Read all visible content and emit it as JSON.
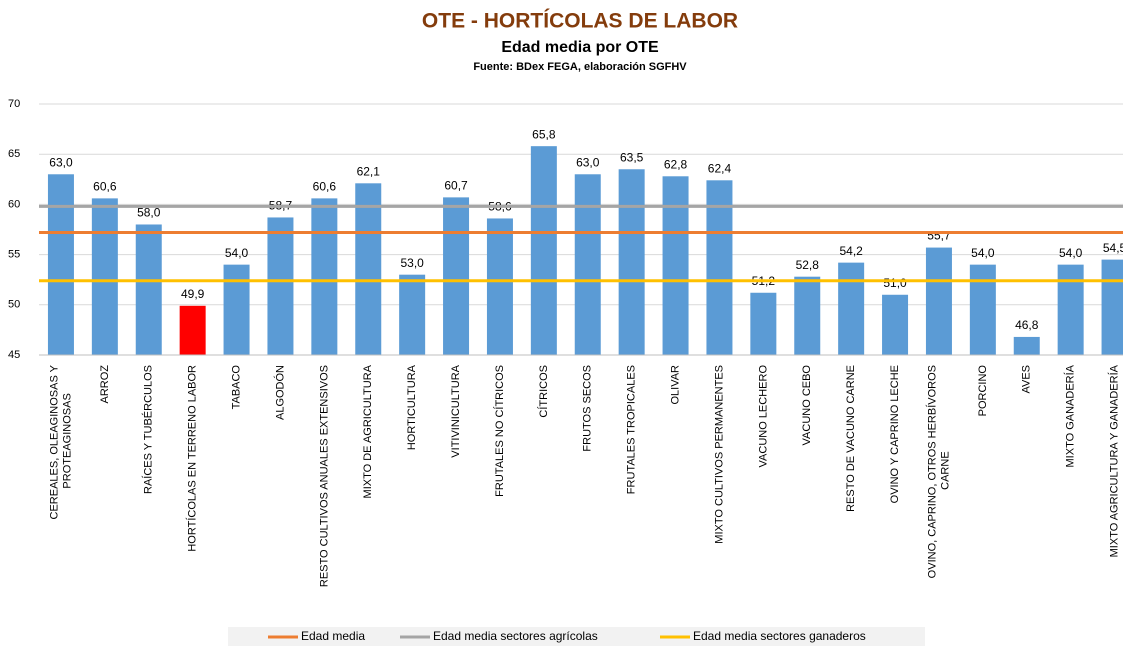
{
  "chart_data": {
    "type": "bar",
    "title": "OTE - HORTÍCOLAS DE LABOR",
    "subtitle": "Edad media por OTE",
    "source": "Fuente: BDex FEGA, elaboración SGFHV",
    "categories": [
      [
        "CEREALES, OLEAGINOSAS Y",
        "PROTEAGINOSAS"
      ],
      "ARROZ",
      "RAÍCES Y TUBÉRCULOS",
      "HORTÍCOLAS EN TERRENO LABOR",
      "TABACO",
      "ALGODÓN",
      "RESTO CULTIVOS ANUALES EXTENSIVOS",
      "MIXTO DE AGRICULTURA",
      "HORTICULTURA",
      "VITIVINICULTURA",
      "FRUTALES NO CÍTRICOS",
      "CÍTRICOS",
      "FRUTOS SECOS",
      "FRUTALES TROPICALES",
      "OLIVAR",
      "MIXTO CULTIVOS PERMANENTES",
      "VACUNO LECHERO",
      "VACUNO CEBO",
      "RESTO DE VACUNO CARNE",
      "OVINO Y CAPRINO LECHE",
      [
        "OVINO, CAPRINO, OTROS HERBÍVOROS",
        "CARNE"
      ],
      "PORCINO",
      "AVES",
      "MIXTO GANADERÍA",
      "MIXTO AGRICULTURA Y GANADERÍA"
    ],
    "values": [
      63.0,
      60.6,
      58.0,
      49.9,
      54.0,
      58.7,
      60.6,
      62.1,
      53.0,
      60.7,
      58.6,
      65.8,
      63.0,
      63.5,
      62.8,
      62.4,
      51.2,
      52.8,
      54.2,
      51.0,
      55.7,
      54.0,
      46.8,
      54.0,
      54.5
    ],
    "value_labels": [
      "63,0",
      "60,6",
      "58,0",
      "49,9",
      "54,0",
      "58,7",
      "60,6",
      "62,1",
      "53,0",
      "60,7",
      "58,6",
      "65,8",
      "63,0",
      "63,5",
      "62,8",
      "62,4",
      "51,2",
      "52,8",
      "54,2",
      "51,0",
      "55,7",
      "54,0",
      "46,8",
      "54,0",
      "54,5"
    ],
    "colors": [
      "#5b9bd5",
      "#5b9bd5",
      "#5b9bd5",
      "#ff0000",
      "#5b9bd5",
      "#5b9bd5",
      "#5b9bd5",
      "#5b9bd5",
      "#5b9bd5",
      "#5b9bd5",
      "#5b9bd5",
      "#5b9bd5",
      "#5b9bd5",
      "#5b9bd5",
      "#5b9bd5",
      "#5b9bd5",
      "#5b9bd5",
      "#5b9bd5",
      "#5b9bd5",
      "#5b9bd5",
      "#5b9bd5",
      "#5b9bd5",
      "#5b9bd5",
      "#5b9bd5",
      "#5b9bd5"
    ],
    "reference_lines": [
      {
        "name": "Edad media",
        "color": "#ed7d31",
        "value": 57.2
      },
      {
        "name": "Edad media sectores agrícolas",
        "color": "#a5a5a5",
        "value": 59.8
      },
      {
        "name": "Edad media sectores ganaderos",
        "color": "#ffc000",
        "value": 52.4
      }
    ],
    "ylim": [
      45,
      70
    ],
    "yticks": [
      45,
      50,
      55,
      60,
      65,
      70
    ],
    "grid": true
  }
}
